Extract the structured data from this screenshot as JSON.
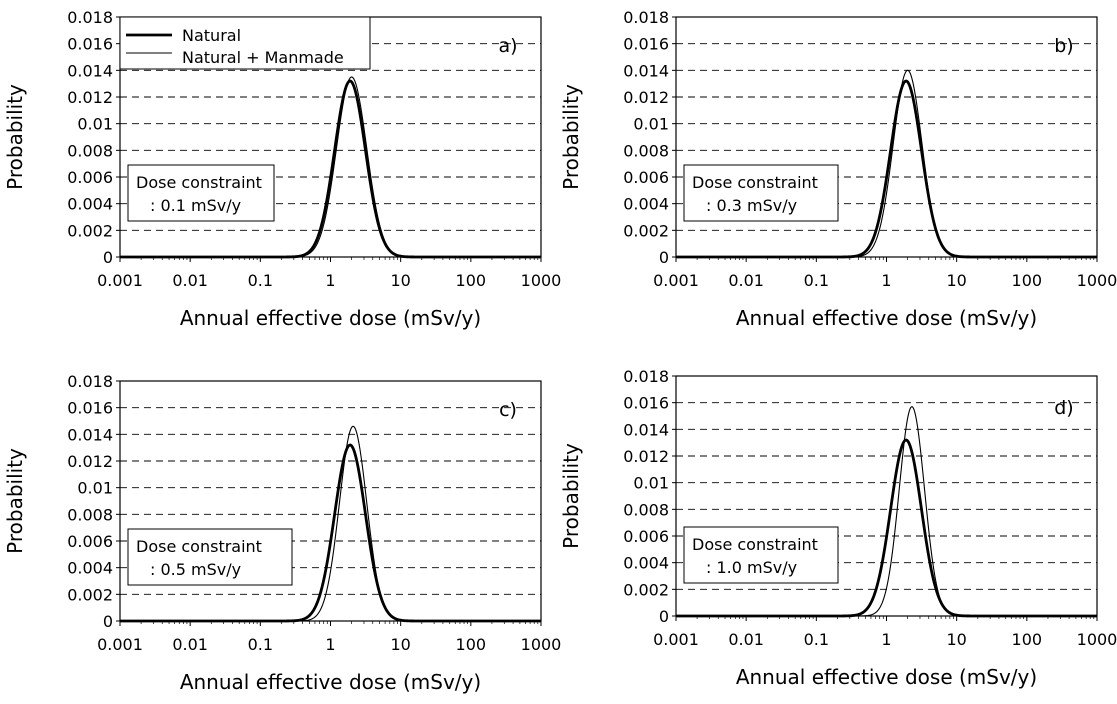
{
  "figure": {
    "legend": [
      "Natural",
      "Natural + Manmade"
    ]
  },
  "chart_data": [
    {
      "type": "line",
      "panel_label": "a)",
      "annotation": [
        "Dose constraint",
        ": 0.1 mSv/y"
      ],
      "xlabel": "Annual effective dose (mSv/y)",
      "ylabel": "Probability",
      "xscale": "log",
      "xlim": [
        0.001,
        1000
      ],
      "ylim": [
        0,
        0.018
      ],
      "x_ticks": [
        "0.001",
        "0.01",
        "0.1",
        "1",
        "10",
        "100",
        "1000"
      ],
      "y_ticks": [
        "0",
        "0.002",
        "0.004",
        "0.006",
        "0.008",
        "0.01",
        "0.012",
        "0.014",
        "0.016",
        "0.018"
      ],
      "grid": "horizontal dashed",
      "legend": "top-left",
      "series": [
        {
          "name": "Natural",
          "peak_x": 1.9,
          "peak_y": 0.0132,
          "log_sigma": 0.22,
          "stroke": "thick"
        },
        {
          "name": "Natural + Manmade",
          "peak_x": 2.0,
          "peak_y": 0.0135,
          "log_sigma": 0.215,
          "stroke": "thin"
        }
      ]
    },
    {
      "type": "line",
      "panel_label": "b)",
      "annotation": [
        "Dose constraint",
        ": 0.3 mSv/y"
      ],
      "xlabel": "Annual effective dose (mSv/y)",
      "ylabel": "Probability",
      "xscale": "log",
      "xlim": [
        0.001,
        1000
      ],
      "ylim": [
        0,
        0.018
      ],
      "x_ticks": [
        "0.001",
        "0.01",
        "0.1",
        "1",
        "10",
        "100",
        "1000"
      ],
      "y_ticks": [
        "0",
        "0.002",
        "0.004",
        "0.006",
        "0.008",
        "0.01",
        "0.012",
        "0.014",
        "0.016",
        "0.018"
      ],
      "grid": "horizontal dashed",
      "series": [
        {
          "name": "Natural",
          "peak_x": 1.9,
          "peak_y": 0.0132,
          "log_sigma": 0.22,
          "stroke": "thick"
        },
        {
          "name": "Natural + Manmade",
          "peak_x": 2.0,
          "peak_y": 0.014,
          "log_sigma": 0.205,
          "stroke": "thin"
        }
      ]
    },
    {
      "type": "line",
      "panel_label": "c)",
      "annotation": [
        "Dose constraint",
        ": 0.5 mSv/y"
      ],
      "xlabel": "Annual effective dose (mSv/y)",
      "ylabel": "Probability",
      "xscale": "log",
      "xlim": [
        0.001,
        1000
      ],
      "ylim": [
        0,
        0.018
      ],
      "x_ticks": [
        "0.001",
        "0.01",
        "0.1",
        "1",
        "10",
        "100",
        "1000"
      ],
      "y_ticks": [
        "0",
        "0.002",
        "0.004",
        "0.006",
        "0.008",
        "0.01",
        "0.012",
        "0.014",
        "0.016",
        "0.018"
      ],
      "grid": "horizontal dashed",
      "series": [
        {
          "name": "Natural",
          "peak_x": 1.9,
          "peak_y": 0.0132,
          "log_sigma": 0.22,
          "stroke": "thick"
        },
        {
          "name": "Natural + Manmade",
          "peak_x": 2.1,
          "peak_y": 0.0146,
          "log_sigma": 0.195,
          "stroke": "thin"
        }
      ]
    },
    {
      "type": "line",
      "panel_label": "d)",
      "annotation": [
        "Dose constraint",
        ": 1.0 mSv/y"
      ],
      "xlabel": "Annual effective dose (mSv/y)",
      "ylabel": "Probability",
      "xscale": "log",
      "xlim": [
        0.001,
        1000
      ],
      "ylim": [
        0,
        0.018
      ],
      "x_ticks": [
        "0.001",
        "0.01",
        "0.1",
        "1",
        "10",
        "100",
        "1000"
      ],
      "y_ticks": [
        "0",
        "0.002",
        "0.004",
        "0.006",
        "0.008",
        "0.01",
        "0.012",
        "0.014",
        "0.016",
        "0.018"
      ],
      "grid": "horizontal dashed",
      "series": [
        {
          "name": "Natural",
          "peak_x": 1.9,
          "peak_y": 0.0132,
          "log_sigma": 0.22,
          "stroke": "thick"
        },
        {
          "name": "Natural + Manmade",
          "peak_x": 2.3,
          "peak_y": 0.0157,
          "log_sigma": 0.18,
          "stroke": "thin"
        }
      ]
    }
  ]
}
